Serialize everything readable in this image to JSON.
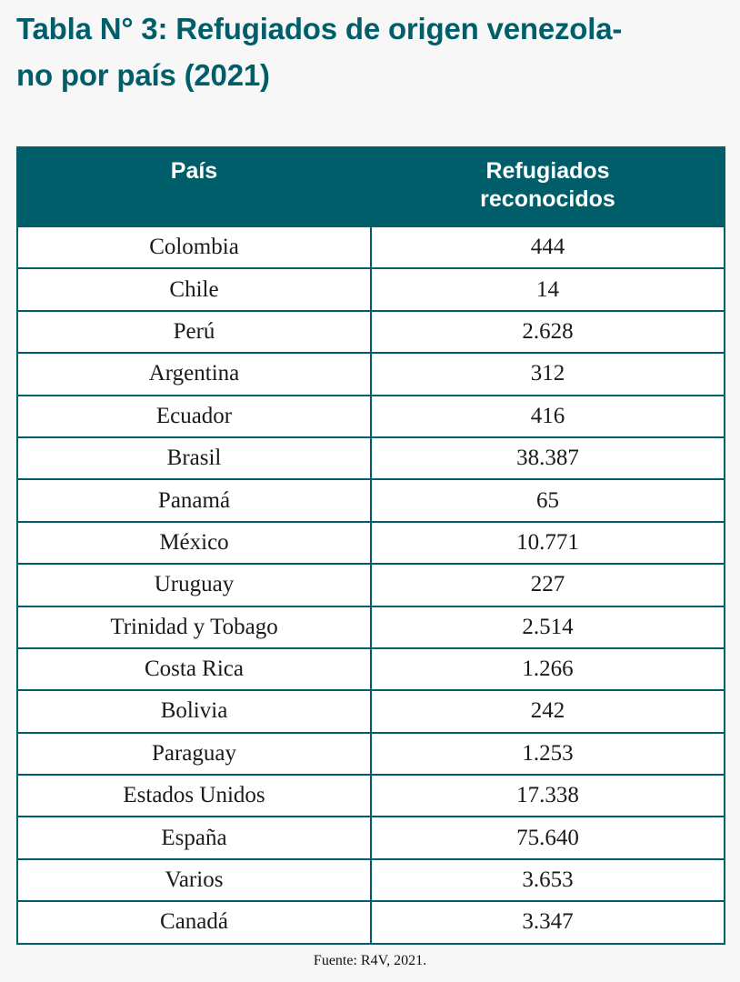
{
  "title": {
    "line1": "Tabla N° 3: Refugiados de origen venezola-",
    "line2": "no por país (2021)"
  },
  "table": {
    "headers": {
      "country": "País",
      "refugees_line1": "Refugiados",
      "refugees_line2": "reconocidos"
    },
    "rows": [
      {
        "country": "Colombia",
        "refugees": "444"
      },
      {
        "country": "Chile",
        "refugees": "14"
      },
      {
        "country": "Perú",
        "refugees": "2.628"
      },
      {
        "country": "Argentina",
        "refugees": "312"
      },
      {
        "country": "Ecuador",
        "refugees": "416"
      },
      {
        "country": "Brasil",
        "refugees": "38.387"
      },
      {
        "country": "Panamá",
        "refugees": "65"
      },
      {
        "country": "México",
        "refugees": "10.771"
      },
      {
        "country": "Uruguay",
        "refugees": "227"
      },
      {
        "country": "Trinidad y Tobago",
        "refugees": "2.514"
      },
      {
        "country": "Costa Rica",
        "refugees": "1.266"
      },
      {
        "country": "Bolivia",
        "refugees": "242"
      },
      {
        "country": "Paraguay",
        "refugees": "1.253"
      },
      {
        "country": "Estados Unidos",
        "refugees": "17.338"
      },
      {
        "country": "España",
        "refugees": "75.640"
      },
      {
        "country": "Varios",
        "refugees": "3.653"
      },
      {
        "country": "Canadá",
        "refugees": "3.347"
      }
    ]
  },
  "source": "Fuente: R4V, 2021.",
  "colors": {
    "accent": "#005e6b",
    "background": "#f7f7f7",
    "cell_background": "#ffffff",
    "text": "#1a1a1a"
  }
}
